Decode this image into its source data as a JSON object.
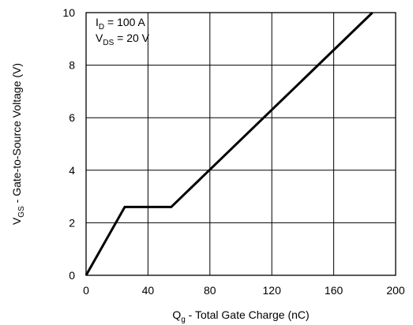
{
  "chart_data": {
    "type": "line",
    "xlabel": {
      "main": "Q",
      "sub": "g",
      "rest": " - Total Gate Charge (nC)"
    },
    "ylabel": {
      "main": "V",
      "sub": "GS",
      "rest": " - Gate-to-Source Voltage (V)"
    },
    "xlim": [
      0,
      200
    ],
    "ylim": [
      0,
      10
    ],
    "xticks": [
      0,
      40,
      80,
      120,
      160,
      200
    ],
    "yticks": [
      0,
      2,
      4,
      6,
      8,
      10
    ],
    "grid": true,
    "annotations": [
      {
        "main": "I",
        "sub": "D",
        "rest": " = 100 A"
      },
      {
        "main": "V",
        "sub": "DS",
        "rest": " = 20 V"
      }
    ],
    "series": [
      {
        "x": [
          0,
          25,
          55,
          185
        ],
        "y": [
          0,
          2.6,
          2.6,
          10
        ]
      }
    ]
  }
}
